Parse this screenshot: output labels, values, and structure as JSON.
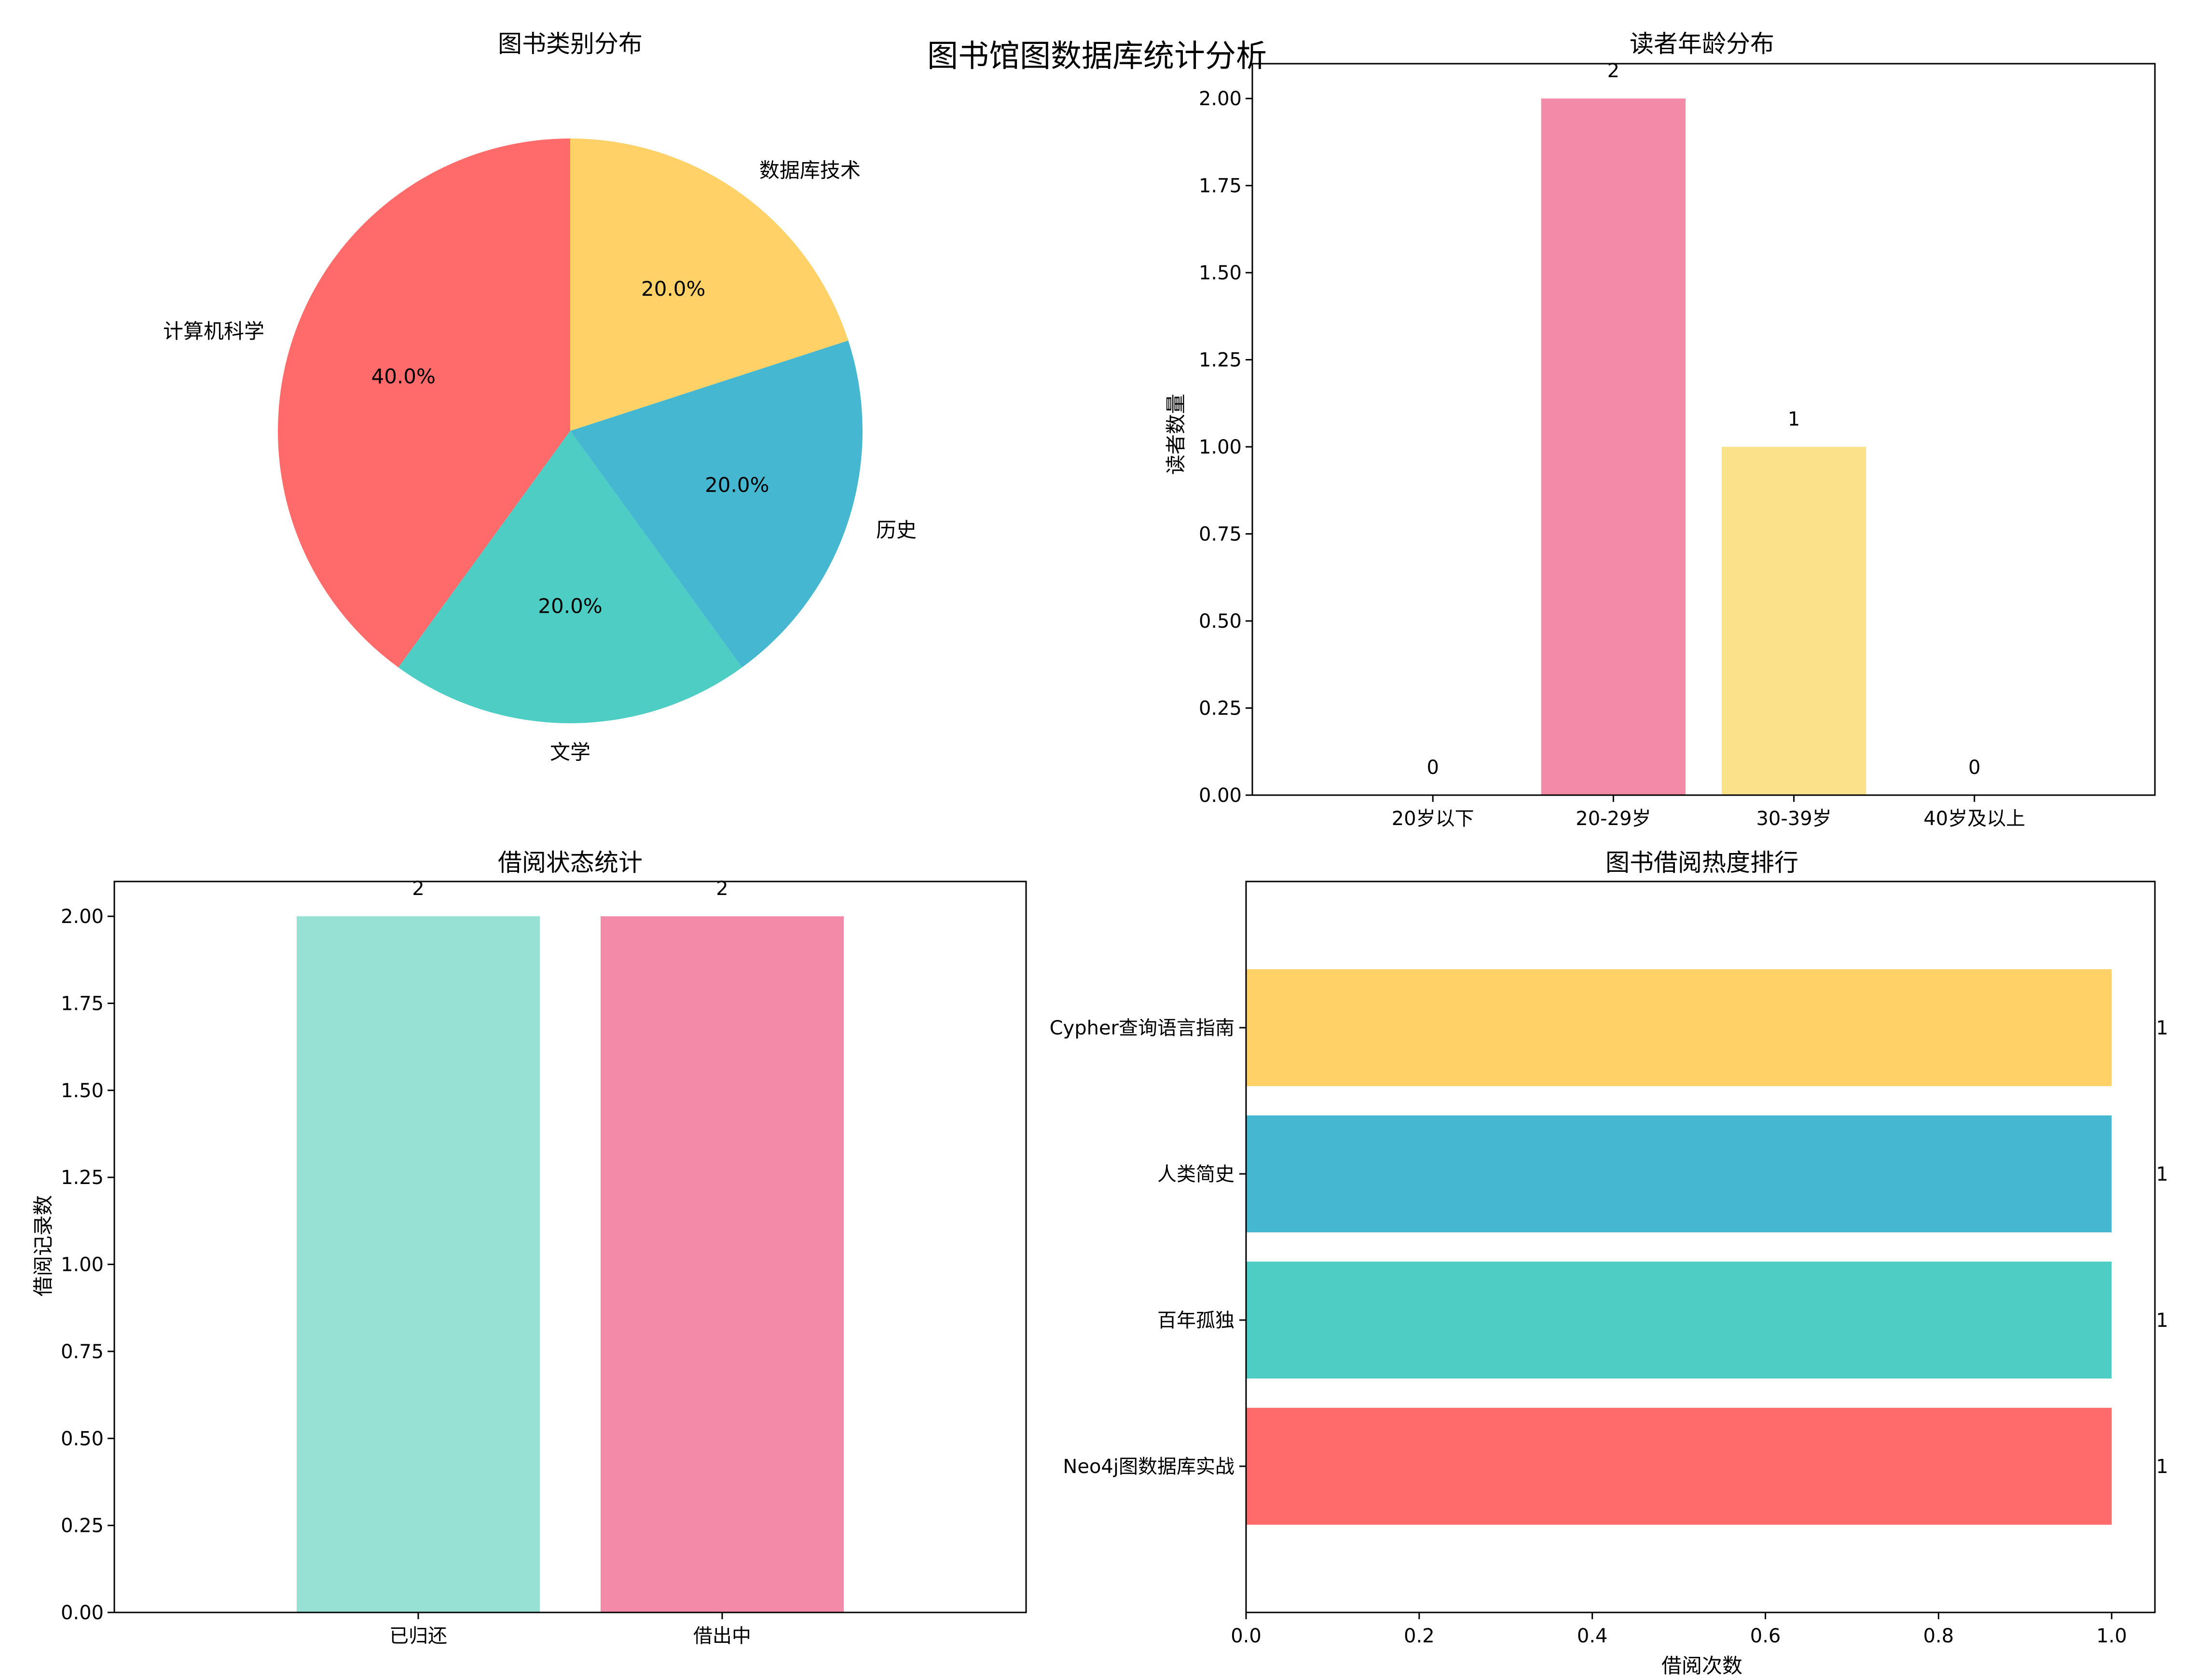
{
  "suptitle": "图书馆图数据库统计分析",
  "chart_data": [
    {
      "type": "pie",
      "title": "图书类别分布",
      "labels": [
        "计算机科学",
        "文学",
        "历史",
        "数据库技术"
      ],
      "values": [
        40,
        20,
        20,
        20
      ],
      "pct_labels": [
        "40.0%",
        "20.0%",
        "20.0%",
        "20.0%"
      ],
      "colors": [
        "#ff6b6b",
        "#4ecdc4",
        "#45b7d1",
        "#ffd166"
      ],
      "start_angle": 90
    },
    {
      "type": "bar",
      "title": "读者年龄分布",
      "categories": [
        "20岁以下",
        "20-29岁",
        "30-39岁",
        "40岁及以上"
      ],
      "values": [
        0,
        2,
        1,
        0
      ],
      "data_labels": [
        "0",
        "2",
        "1",
        "0"
      ],
      "colors": [
        "#96dfd3",
        "#f38ba8",
        "#fbe28a",
        "#d0d0ff"
      ],
      "xlabel": "",
      "ylabel": "读者数量",
      "ylim": [
        0,
        2.1
      ],
      "yticks": [
        0,
        0.25,
        0.5,
        0.75,
        1.0,
        1.25,
        1.5,
        1.75,
        2.0
      ],
      "ytick_labels": [
        "0.00",
        "0.25",
        "0.50",
        "0.75",
        "1.00",
        "1.25",
        "1.50",
        "1.75",
        "2.00"
      ]
    },
    {
      "type": "bar",
      "title": "借阅状态统计",
      "categories": [
        "已归还",
        "借出中"
      ],
      "values": [
        2,
        2
      ],
      "data_labels": [
        "2",
        "2"
      ],
      "colors": [
        "#96e0d4",
        "#f38ba8"
      ],
      "xlabel": "",
      "ylabel": "借阅记录数",
      "ylim": [
        0,
        2.1
      ],
      "yticks": [
        0,
        0.25,
        0.5,
        0.75,
        1.0,
        1.25,
        1.5,
        1.75,
        2.0
      ],
      "ytick_labels": [
        "0.00",
        "0.25",
        "0.50",
        "0.75",
        "1.00",
        "1.25",
        "1.50",
        "1.75",
        "2.00"
      ]
    },
    {
      "type": "barh",
      "title": "图书借阅热度排行",
      "categories": [
        "Neo4j图数据库实战",
        "百年孤独",
        "人类简史",
        "Cypher查询语言指南"
      ],
      "values": [
        1,
        1,
        1,
        1
      ],
      "data_labels": [
        "1",
        "1",
        "1",
        "1"
      ],
      "colors": [
        "#ff6b6b",
        "#4ecdc4",
        "#45b7d1",
        "#ffd166"
      ],
      "xlabel": "借阅次数",
      "ylabel": "",
      "xlim": [
        0,
        1.05
      ],
      "xticks": [
        0,
        0.2,
        0.4,
        0.6,
        0.8,
        1.0
      ],
      "xtick_labels": [
        "0.0",
        "0.2",
        "0.4",
        "0.6",
        "0.8",
        "1.0"
      ]
    }
  ]
}
